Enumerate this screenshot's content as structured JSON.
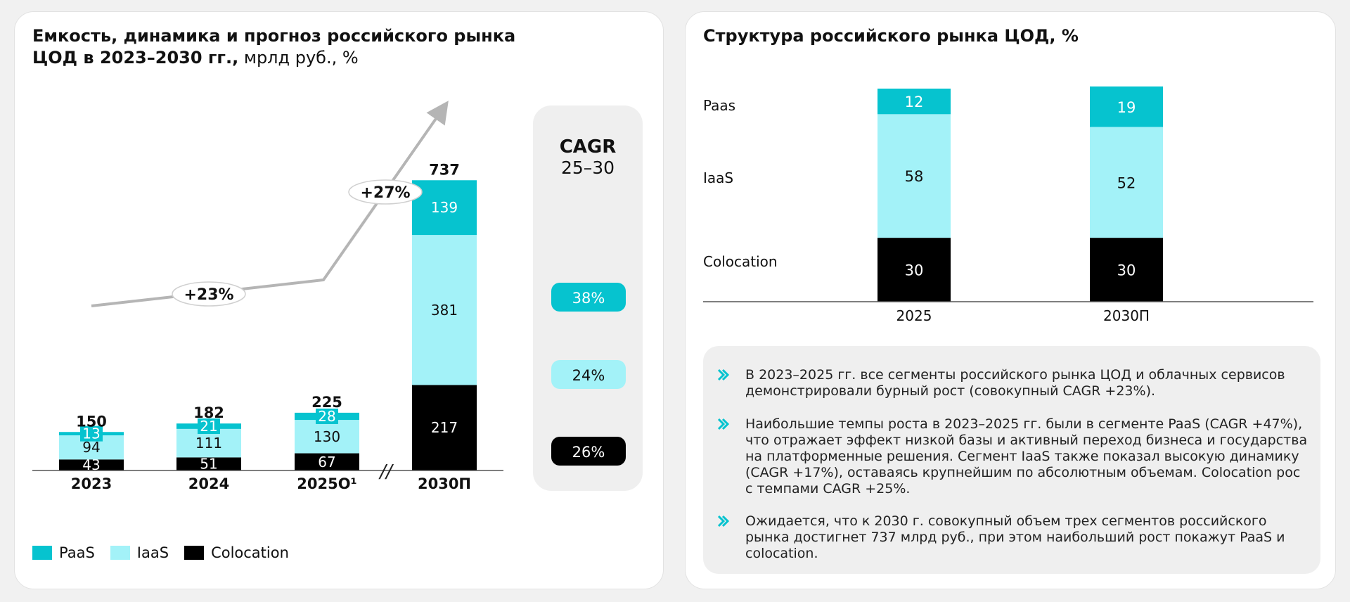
{
  "left_panel": {
    "title_bold_line1": "Емкость, динамика и прогноз российского рынка",
    "title_bold_line2": "ЦОД в 2023–2030 гг.,",
    "title_unit": " мрлд руб., %",
    "break_mark": "//",
    "growth_labels": [
      "+23%",
      "+27%"
    ],
    "cagr": {
      "title": "CAGR",
      "subtitle": "25–30",
      "values": [
        {
          "series": "PaaS",
          "label": "38%"
        },
        {
          "series": "IaaS",
          "label": "24%"
        },
        {
          "series": "Colocation",
          "label": "26%"
        }
      ]
    },
    "legend": [
      {
        "name": "PaaS",
        "color": "#06c3cf"
      },
      {
        "name": "IaaS",
        "color": "#a3f2f8"
      },
      {
        "name": "Colocation",
        "color": "#000000"
      }
    ]
  },
  "right_panel": {
    "title": "Структура российского рынка ЦОД, %",
    "row_labels": [
      "Paas",
      "IaaS",
      "Colocation"
    ]
  },
  "notes": [
    "В 2023–2025 гг. все сегменты российского рынка ЦОД и облачных сервисов демонстрировали бурный рост (совокупный CAGR +23%).",
    "Наибольшие темпы роста в 2023–2025 гг. были в сегменте PaaS (CAGR +47%), что отражает эффект низкой базы и активный переход бизнеса и государства на платформенные решения. Сегмент IaaS также показал высокую динамику (CAGR +17%), оставаясь крупнейшим по абсолютным объемам. Colocation рос с темпами CAGR +25%.",
    "Ожидается, что к 2030 г. совокупный объем трех сегментов российского рынка достигнет 737 млрд руб., при этом наибольший рост покажут PaaS и colocation."
  ],
  "colors": {
    "paas": "#06c3cf",
    "iaas": "#a3f2f8",
    "colocation": "#000000",
    "arrow": "#b5b5b5",
    "panel": "#efefef"
  },
  "chart_data": [
    {
      "type": "bar",
      "stacked": true,
      "categories": [
        "2023",
        "2024",
        "2025О¹",
        "2030П"
      ],
      "series": [
        {
          "name": "Colocation",
          "values": [
            43,
            51,
            67,
            217
          ]
        },
        {
          "name": "IaaS",
          "values": [
            94,
            111,
            130,
            381
          ]
        },
        {
          "name": "PaaS",
          "values": [
            13,
            21,
            28,
            139
          ]
        }
      ],
      "totals": [
        150,
        182,
        225,
        737
      ],
      "axis_break_between": [
        "2025О¹",
        "2030П"
      ],
      "legend_position": "bottom-left",
      "grid": false
    },
    {
      "type": "bar",
      "stacked": true,
      "categories": [
        "2025",
        "2030П"
      ],
      "series": [
        {
          "name": "Colocation",
          "values": [
            30,
            30
          ]
        },
        {
          "name": "IaaS",
          "values": [
            58,
            52
          ]
        },
        {
          "name": "Paas",
          "values": [
            12,
            19
          ]
        }
      ],
      "ylim": [
        0,
        100
      ],
      "grid": false
    }
  ]
}
